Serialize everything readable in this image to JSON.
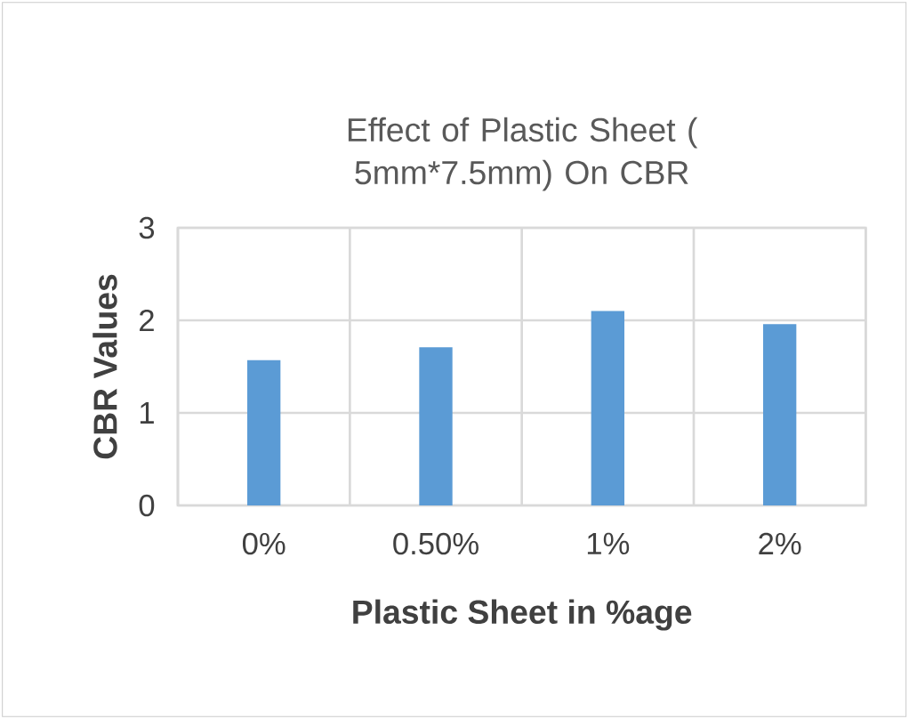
{
  "chart_data": {
    "type": "bar",
    "title": "Effect of Plastic Sheet ( 5mm*7.5mm) On CBR",
    "xlabel": "Plastic Sheet in %age",
    "ylabel": "CBR Values",
    "categories": [
      "0%",
      "0.50%",
      "1%",
      "2%"
    ],
    "values": [
      1.57,
      1.71,
      2.1,
      1.96
    ],
    "color": "#5b9bd5",
    "ylim": [
      0,
      3
    ],
    "yticks": [
      0,
      1,
      2,
      3
    ],
    "grid": true
  }
}
